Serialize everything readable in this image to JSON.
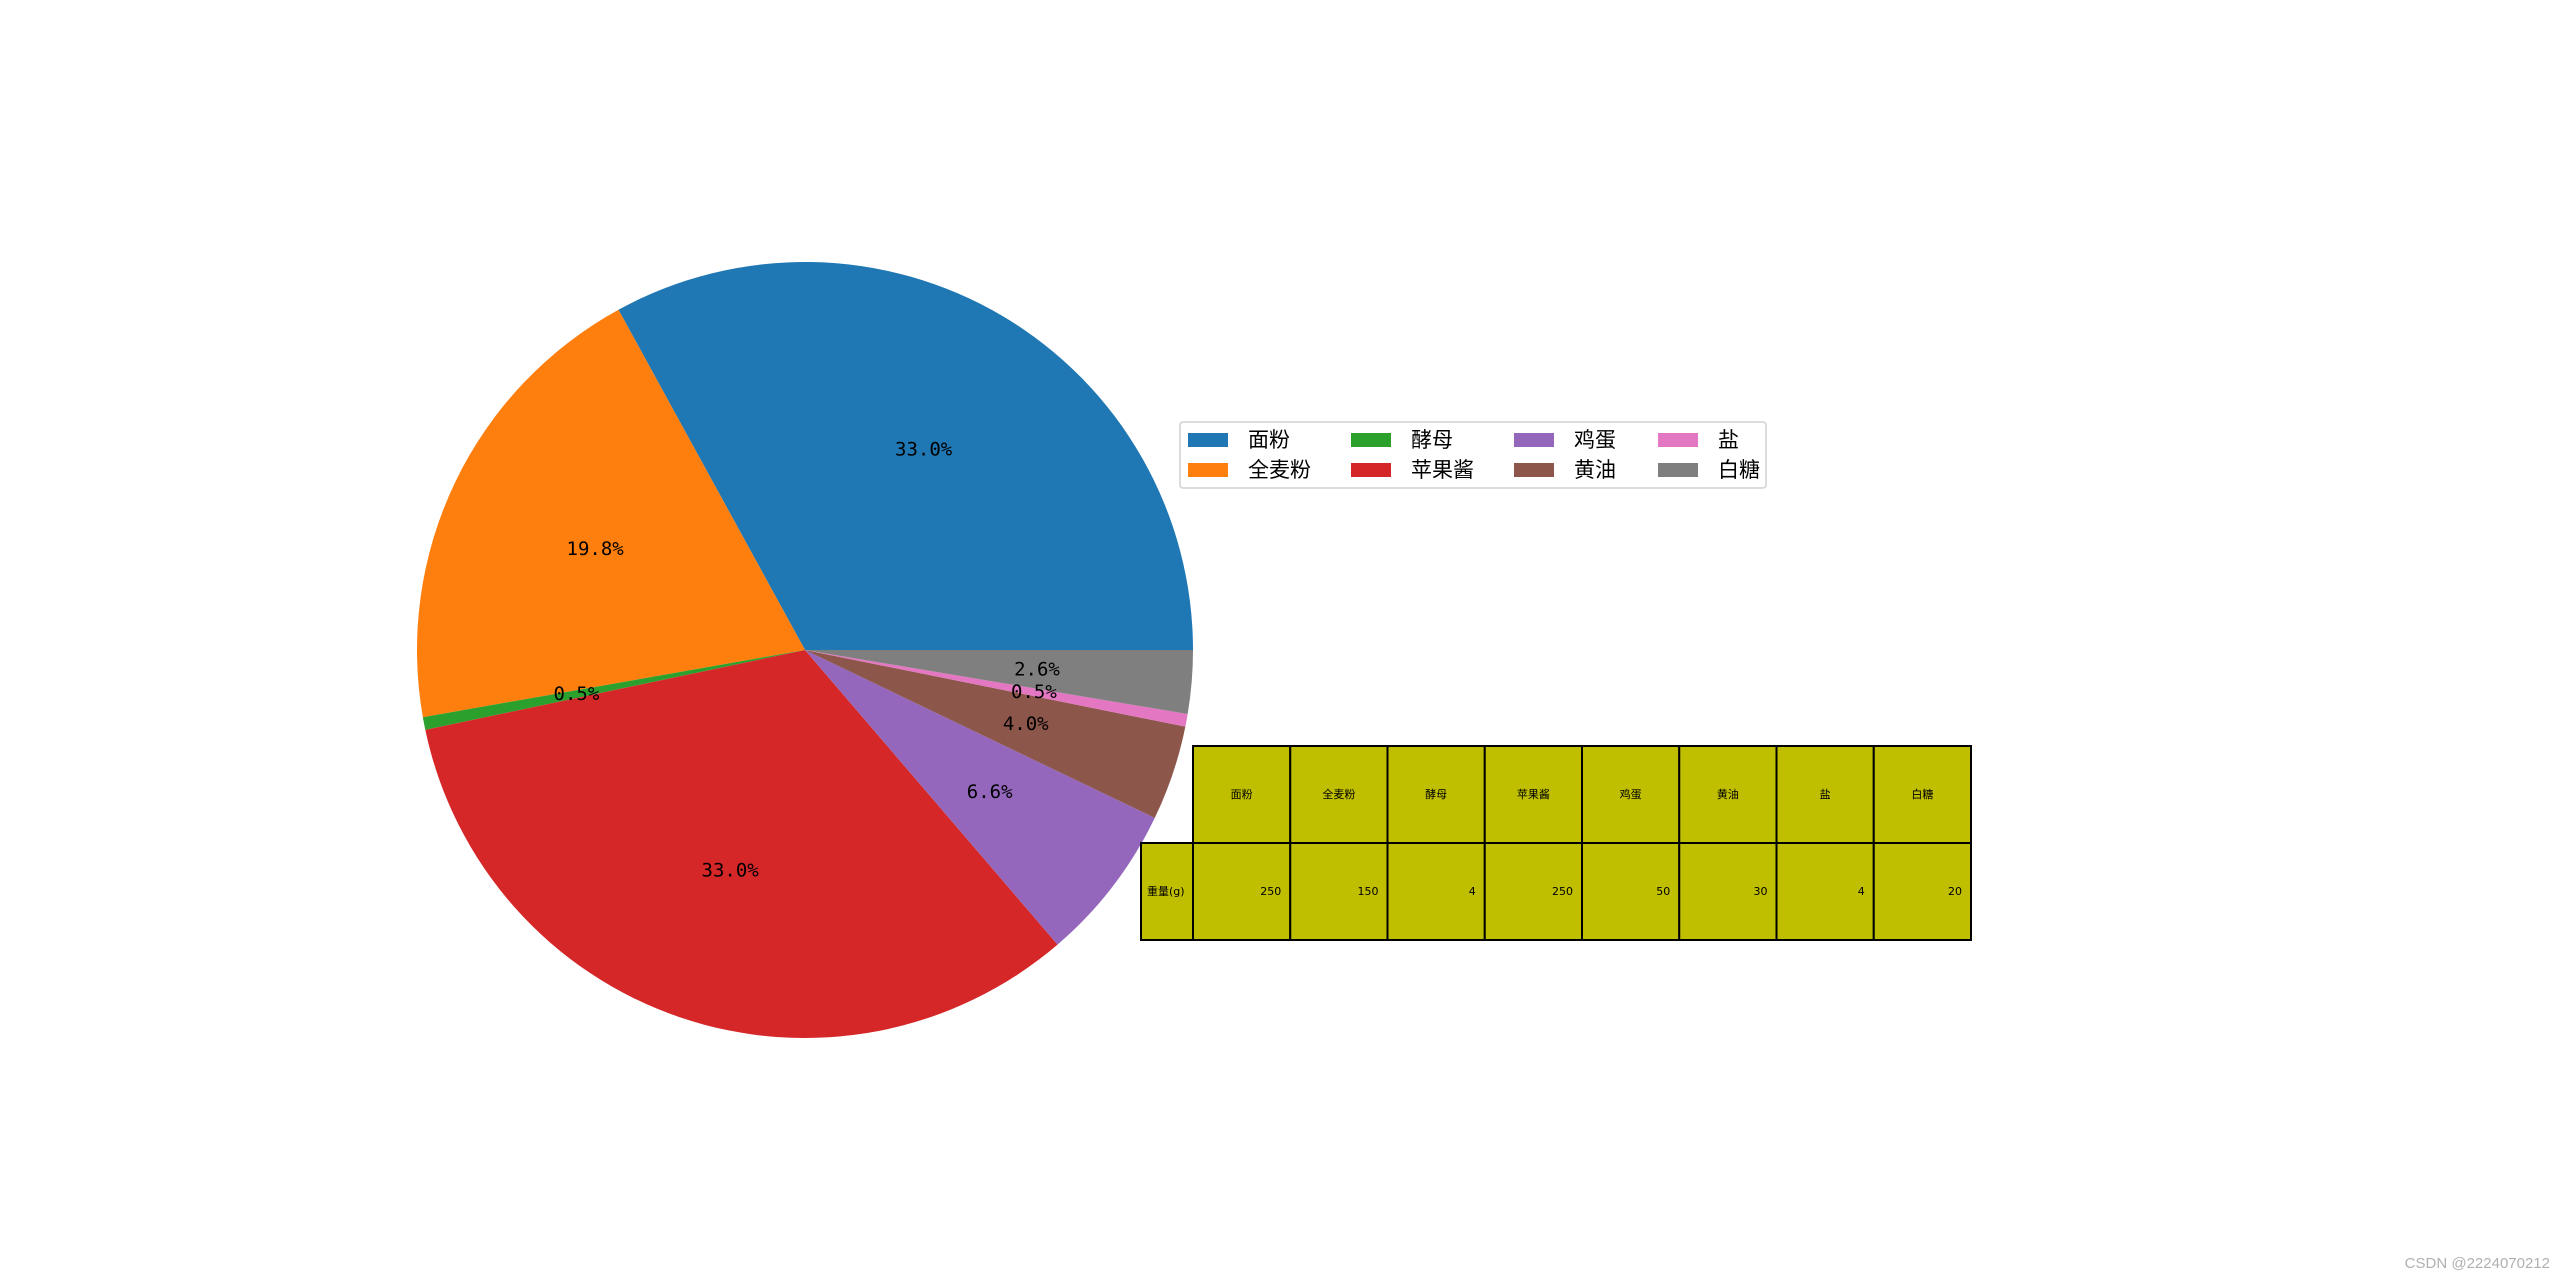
{
  "chart_data": {
    "type": "pie",
    "categories": [
      "面粉",
      "全麦粉",
      "酵母",
      "苹果酱",
      "鸡蛋",
      "黄油",
      "盐",
      "白糖"
    ],
    "values": [
      250,
      150,
      4,
      250,
      50,
      30,
      4,
      20
    ],
    "percent_labels": [
      "33.0%",
      "19.8%",
      "0.5%",
      "33.0%",
      "6.6%",
      "4.0%",
      "0.5%",
      "2.6%"
    ],
    "colors": [
      "#1f77b4",
      "#ff7f0e",
      "#2ca02c",
      "#d62728",
      "#9467bd",
      "#8c564b",
      "#e377c2",
      "#7f7f7f"
    ],
    "start_angle_deg": 0,
    "direction": "counterclockwise",
    "legend": {
      "placement": "right of pie",
      "columns": 4,
      "entries": [
        "面粉",
        "全麦粉",
        "酵母",
        "苹果酱",
        "鸡蛋",
        "黄油",
        "盐",
        "白糖"
      ]
    },
    "table": {
      "col_labels": [
        "面粉",
        "全麦粉",
        "酵母",
        "苹果酱",
        "鸡蛋",
        "黄油",
        "盐",
        "白糖"
      ],
      "row_label": "重量(g)",
      "row_values": [
        "250",
        "150",
        "4",
        "250",
        "50",
        "30",
        "4",
        "20"
      ],
      "cell_color": "#bfbf00"
    }
  },
  "watermark": "CSDN @2224070212"
}
